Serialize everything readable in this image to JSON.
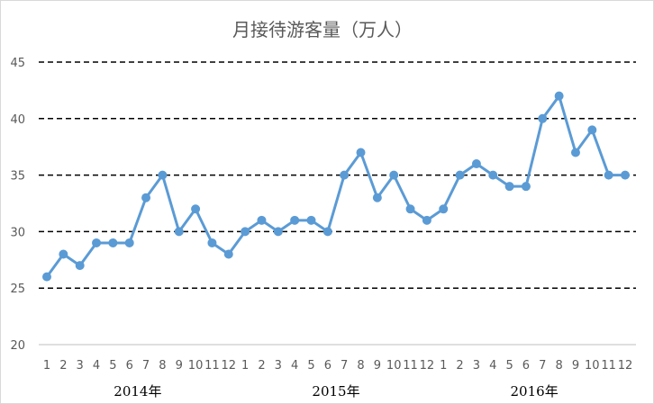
{
  "chart_data": {
    "type": "line",
    "title": "月接待游客量（万人）",
    "xlabel": "",
    "ylabel": "",
    "ylim": [
      20,
      45
    ],
    "yticks": [
      20,
      25,
      30,
      35,
      40,
      45
    ],
    "grid": true,
    "grid_style": "dashed",
    "categories": [
      "1",
      "2",
      "3",
      "4",
      "5",
      "6",
      "7",
      "8",
      "9",
      "10",
      "11",
      "12",
      "1",
      "2",
      "3",
      "4",
      "5",
      "6",
      "7",
      "8",
      "9",
      "10",
      "11",
      "12",
      "1",
      "2",
      "3",
      "4",
      "5",
      "6",
      "7",
      "8",
      "9",
      "10",
      "11",
      "12"
    ],
    "groups": [
      {
        "label": "2014年",
        "start": 0,
        "end": 11
      },
      {
        "label": "2015年",
        "start": 12,
        "end": 23
      },
      {
        "label": "2016年",
        "start": 24,
        "end": 35
      }
    ],
    "series": [
      {
        "values": [
          26,
          28,
          27,
          29,
          29,
          29,
          33,
          35,
          30,
          32,
          29,
          28,
          30,
          31,
          30,
          31,
          31,
          30,
          35,
          37,
          33,
          35,
          32,
          31,
          32,
          35,
          36,
          35,
          34,
          34,
          40,
          42,
          37,
          39,
          35,
          35
        ],
        "color": "#5b9bd5"
      }
    ],
    "colors": {
      "line": "#5b9bd5",
      "grid": "#000000",
      "text": "#595959",
      "axis": "#bfbfbf"
    }
  }
}
